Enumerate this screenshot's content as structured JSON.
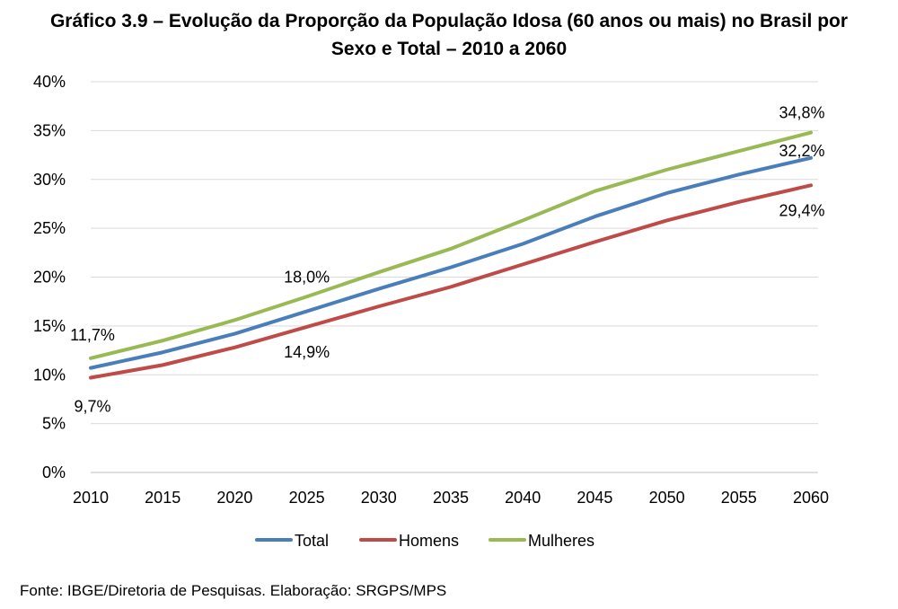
{
  "chart_data": {
    "type": "line",
    "title_line1": "Gráfico 3.9 – Evolução da Proporção da População Idosa (60 anos ou mais) no Brasil por",
    "title_line2": "Sexo e Total – 2010 a 2060",
    "x": [
      2010,
      2015,
      2020,
      2025,
      2030,
      2035,
      2040,
      2045,
      2050,
      2055,
      2060
    ],
    "y_ticks": [
      "0%",
      "5%",
      "10%",
      "15%",
      "20%",
      "25%",
      "30%",
      "35%",
      "40%"
    ],
    "x_ticks": [
      "2010",
      "2015",
      "2020",
      "2025",
      "2030",
      "2035",
      "2040",
      "2045",
      "2050",
      "2055",
      "2060"
    ],
    "ylim": [
      0,
      40
    ],
    "grid": "horizontal",
    "legend_position": "bottom",
    "series": [
      {
        "name": "Total",
        "color": "#4a7ebb",
        "values": [
          10.7,
          12.3,
          14.2,
          16.5,
          18.8,
          21.0,
          23.4,
          26.2,
          28.6,
          30.5,
          32.2
        ]
      },
      {
        "name": "Homens",
        "color": "#be4b48",
        "values": [
          9.7,
          11.0,
          12.8,
          14.9,
          17.0,
          19.0,
          21.3,
          23.6,
          25.8,
          27.7,
          29.4
        ]
      },
      {
        "name": "Mulheres",
        "color": "#98b954",
        "values": [
          11.7,
          13.5,
          15.6,
          18.0,
          20.5,
          22.9,
          25.8,
          28.8,
          31.0,
          32.9,
          34.8
        ]
      }
    ],
    "data_labels": [
      {
        "text": "11,7%",
        "series": "Mulheres",
        "x": 2010,
        "placement": "above"
      },
      {
        "text": "9,7%",
        "series": "Homens",
        "x": 2010,
        "placement": "below"
      },
      {
        "text": "18,0%",
        "series": "Mulheres",
        "x": 2025,
        "placement": "above"
      },
      {
        "text": "14,9%",
        "series": "Homens",
        "x": 2025,
        "placement": "below"
      },
      {
        "text": "34,8%",
        "series": "Mulheres",
        "x": 2060,
        "placement": "above"
      },
      {
        "text": "32,2%",
        "series": "Total",
        "x": 2060,
        "placement": "above"
      },
      {
        "text": "29,4%",
        "series": "Homens",
        "x": 2060,
        "placement": "below"
      }
    ]
  },
  "source": "Fonte: IBGE/Diretoria de Pesquisas. Elaboração: SRGPS/MPS"
}
